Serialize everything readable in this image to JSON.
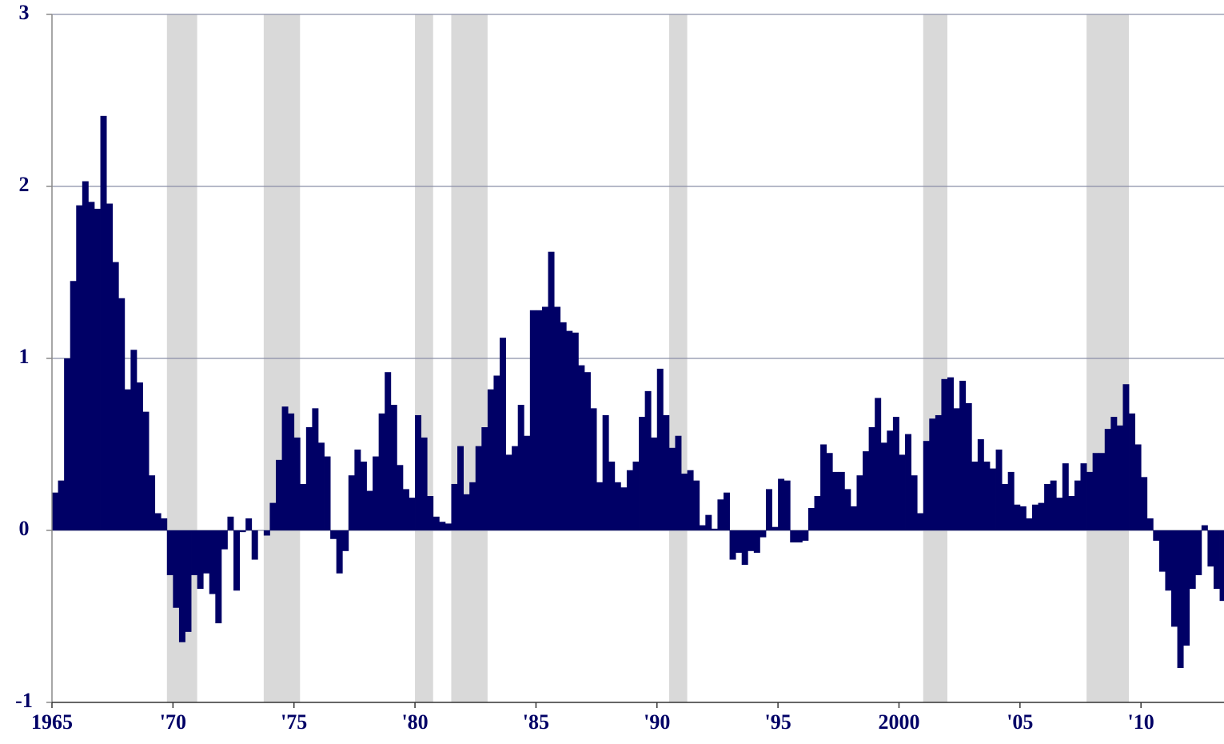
{
  "chart_data": {
    "type": "bar",
    "color": "#000066",
    "shade_color": "#d9d9d9",
    "grid": true,
    "shaded_periods": [
      [
        1969.75,
        1971.0
      ],
      [
        1973.75,
        1975.25
      ],
      [
        1980.0,
        1980.75
      ],
      [
        1981.5,
        1983.0
      ],
      [
        1990.5,
        1991.25
      ],
      [
        2001.0,
        2002.0
      ],
      [
        2007.75,
        2009.5
      ]
    ],
    "bar_width": 0.25,
    "x": [
      1965,
      1965.25,
      1965.5,
      1965.75,
      1966,
      1966.25,
      1966.5,
      1966.75,
      1967,
      1967.25,
      1967.5,
      1967.75,
      1968,
      1968.25,
      1968.5,
      1968.75,
      1969,
      1969.25,
      1969.5,
      1969.75,
      1970,
      1970.25,
      1970.5,
      1970.75,
      1971,
      1971.25,
      1971.5,
      1971.75,
      1972,
      1972.25,
      1972.5,
      1972.75,
      1973,
      1973.25,
      1973.5,
      1973.75,
      1974,
      1974.25,
      1974.5,
      1974.75,
      1975,
      1975.25,
      1975.5,
      1975.75,
      1976,
      1976.25,
      1976.5,
      1976.75,
      1977,
      1977.25,
      1977.5,
      1977.75,
      1978,
      1978.25,
      1978.5,
      1978.75,
      1979,
      1979.25,
      1979.5,
      1979.75,
      1980,
      1980.25,
      1980.5,
      1980.75,
      1981,
      1981.25,
      1981.5,
      1981.75,
      1982,
      1982.25,
      1982.5,
      1982.75,
      1983,
      1983.25,
      1983.5,
      1983.75,
      1984,
      1984.25,
      1984.5,
      1984.75,
      1985,
      1985.25,
      1985.5,
      1985.75,
      1986,
      1986.25,
      1986.5,
      1986.75,
      1987,
      1987.25,
      1987.5,
      1987.75,
      1988,
      1988.25,
      1988.5,
      1988.75,
      1989,
      1989.25,
      1989.5,
      1989.75,
      1990,
      1990.25,
      1990.5,
      1990.75,
      1991,
      1991.25,
      1991.5,
      1991.75,
      1992,
      1992.25,
      1992.5,
      1992.75,
      1993,
      1993.25,
      1993.5,
      1993.75,
      1994,
      1994.25,
      1994.5,
      1994.75,
      1995,
      1995.25,
      1995.5,
      1995.75,
      1996,
      1996.25,
      1996.5,
      1996.75,
      1997,
      1997.25,
      1997.5,
      1997.75,
      1998,
      1998.25,
      1998.5,
      1998.75,
      1999,
      1999.25,
      1999.5,
      1999.75,
      2000,
      2000.25,
      2000.5,
      2000.75,
      2001,
      2001.25,
      2001.5,
      2001.75,
      2002,
      2002.25,
      2002.5,
      2002.75,
      2003,
      2003.25,
      2003.5,
      2003.75,
      2004,
      2004.25,
      2004.5,
      2004.75,
      2005,
      2005.25,
      2005.5,
      2005.75,
      2006,
      2006.25,
      2006.5,
      2006.75,
      2007,
      2007.25,
      2007.5,
      2007.75,
      2008,
      2008.25,
      2008.5,
      2008.75,
      2009,
      2009.25,
      2009.5,
      2009.75,
      2010,
      2010.25,
      2010.5,
      2010.75,
      2011,
      2011.25,
      2011.5,
      2011.75,
      2012,
      2012.25,
      2012.5,
      2012.75,
      2013,
      2013.25
    ],
    "values": [
      0.22,
      0.29,
      1.0,
      1.45,
      1.89,
      2.03,
      1.91,
      1.87,
      2.41,
      1.9,
      1.56,
      1.35,
      0.82,
      1.05,
      0.86,
      0.69,
      0.32,
      0.1,
      0.07,
      -0.26,
      -0.45,
      -0.65,
      -0.59,
      -0.26,
      -0.34,
      -0.25,
      -0.37,
      -0.54,
      -0.11,
      0.08,
      -0.35,
      -0.01,
      0.07,
      -0.17,
      0,
      -0.03,
      0.16,
      0.41,
      0.72,
      0.68,
      0.54,
      0.27,
      0.6,
      0.71,
      0.51,
      0.43,
      -0.05,
      -0.25,
      -0.12,
      0.32,
      0.47,
      0.4,
      0.23,
      0.43,
      0.68,
      0.92,
      0.73,
      0.38,
      0.24,
      0.19,
      0.67,
      0.54,
      0.2,
      0.08,
      0.05,
      0.04,
      0.27,
      0.49,
      0.21,
      0.28,
      0.49,
      0.6,
      0.82,
      0.9,
      1.12,
      0.44,
      0.49,
      0.73,
      0.55,
      1.28,
      1.28,
      1.3,
      1.62,
      1.3,
      1.21,
      1.16,
      1.15,
      0.96,
      0.92,
      0.71,
      0.28,
      0.67,
      0.4,
      0.28,
      0.25,
      0.35,
      0.4,
      0.66,
      0.81,
      0.54,
      0.94,
      0.67,
      0.48,
      0.55,
      0.33,
      0.35,
      0.29,
      0.03,
      0.09,
      0.01,
      0.18,
      0.22,
      -0.17,
      -0.13,
      -0.2,
      -0.12,
      -0.13,
      -0.04,
      0.24,
      0.02,
      0.3,
      0.29,
      -0.07,
      -0.07,
      -0.06,
      0.13,
      0.2,
      0.5,
      0.45,
      0.34,
      0.34,
      0.24,
      0.14,
      0.32,
      0.46,
      0.6,
      0.77,
      0.51,
      0.58,
      0.66,
      0.44,
      0.56,
      0.32,
      0.1,
      0.52,
      0.65,
      0.67,
      0.88,
      0.89,
      0.71,
      0.87,
      0.74,
      0.4,
      0.53,
      0.4,
      0.36,
      0.47,
      0.27,
      0.34,
      0.15,
      0.14,
      0.07,
      0.15,
      0.16,
      0.27,
      0.29,
      0.19,
      0.39,
      0.2,
      0.29,
      0.39,
      0.34,
      0.45,
      0.45,
      0.59,
      0.66,
      0.61,
      0.85,
      0.68,
      0.5,
      0.31,
      0.07,
      -0.06,
      -0.24,
      -0.35,
      -0.56,
      -0.8,
      -0.67,
      -0.34,
      -0.26,
      0.03,
      -0.21,
      -0.34,
      -0.41
    ],
    "xlim": [
      1965,
      2013.43
    ],
    "xticks": [
      1965,
      {
        "value": 1970,
        "label": "'70"
      },
      {
        "value": 1975,
        "label": "'75"
      },
      {
        "value": 1980,
        "label": "'80"
      },
      {
        "value": 1985,
        "label": "'85"
      },
      {
        "value": 1990,
        "label": "'90"
      },
      {
        "value": 1995,
        "label": "'95"
      },
      2000,
      {
        "value": 2005,
        "label": "'05"
      },
      {
        "value": 2010,
        "label": "'10"
      }
    ],
    "ylim": [
      -1,
      3
    ],
    "yticks": [
      -1,
      0,
      1,
      2,
      3
    ]
  }
}
